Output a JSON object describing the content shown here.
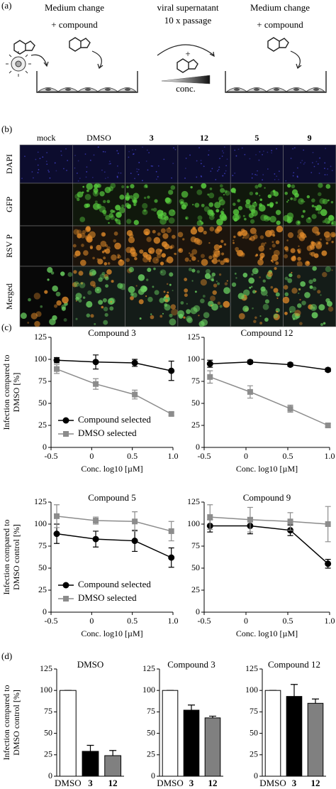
{
  "panel_a": {
    "label": "(a)",
    "left_step": [
      "Medium change",
      "+ compound"
    ],
    "middle_step": [
      "viral supernatant",
      "10 x passage",
      "+",
      "conc."
    ],
    "right_step": [
      "Medium change",
      "+ compound"
    ]
  },
  "panel_b": {
    "label": "(b)",
    "columns": [
      "mock",
      "DMSO",
      "3",
      "12",
      "5",
      "9"
    ],
    "rows": [
      "DAPI",
      "GFP",
      "RSV P",
      "Merged"
    ]
  },
  "panel_c_label": "(c)",
  "panel_d_label": "(d)",
  "chart_data": [
    {
      "type": "line",
      "title": "Compound 3",
      "xlabel": "Conc. log10 [µM]",
      "ylabel": [
        "Infection compared to",
        "DMSO [%]"
      ],
      "xlim": [
        -0.5,
        1
      ],
      "xticks": [
        -0.5,
        0,
        0.5,
        {
          "value": 1,
          "label": "1.0"
        }
      ],
      "ylim": [
        0,
        125
      ],
      "yticks": [
        0,
        25,
        50,
        75,
        100,
        125
      ],
      "legend": "lower-left",
      "x": [
        -0.43,
        0.05,
        0.53,
        0.98
      ],
      "series": [
        {
          "name": "Compound selected",
          "color": "#000000",
          "marker": "circle",
          "values": [
            99,
            97,
            96,
            87
          ],
          "errors": [
            3,
            8,
            4,
            11
          ]
        },
        {
          "name": "DMSO selected",
          "color": "#8c8c8c",
          "marker": "square",
          "values": [
            89,
            72,
            60,
            38
          ],
          "errors": [
            5,
            6,
            5,
            2
          ]
        }
      ]
    },
    {
      "type": "line",
      "title": "Compound 12",
      "xlabel": "Conc. log10 [µM]",
      "xlim": [
        -0.5,
        1
      ],
      "xticks": [
        -0.5,
        0,
        0.5,
        {
          "value": 1,
          "label": "1.0"
        }
      ],
      "ylim": [
        0,
        125
      ],
      "yticks": [
        0,
        25,
        50,
        75,
        100,
        125
      ],
      "x": [
        -0.43,
        0.05,
        0.53,
        0.98
      ],
      "series": [
        {
          "name": "Compound selected",
          "color": "#000000",
          "marker": "circle",
          "values": [
            95,
            97,
            94,
            88
          ],
          "errors": [
            4,
            2,
            2,
            2
          ]
        },
        {
          "name": "DMSO selected",
          "color": "#8c8c8c",
          "marker": "square",
          "values": [
            80,
            63,
            44,
            25
          ],
          "errors": [
            7,
            7,
            4,
            2
          ]
        }
      ]
    },
    {
      "type": "line",
      "title": "Compound 5",
      "xlabel": "Conc. log10 [µM]",
      "ylabel": [
        "Infection compared to",
        "DMSO control  [%]"
      ],
      "xlim": [
        -0.5,
        1
      ],
      "xticks": [
        -0.5,
        0,
        0.5,
        {
          "value": 1,
          "label": "1.0"
        }
      ],
      "ylim": [
        0,
        125
      ],
      "yticks": [
        0,
        25,
        50,
        75,
        100,
        125
      ],
      "legend": "lower-left",
      "x": [
        -0.43,
        0.05,
        0.53,
        0.98
      ],
      "series": [
        {
          "name": "Compound selected",
          "color": "#000000",
          "marker": "circle",
          "values": [
            89,
            83,
            81,
            62
          ],
          "errors": [
            11,
            9,
            12,
            11
          ]
        },
        {
          "name": "DMSO selected",
          "color": "#8c8c8c",
          "marker": "square",
          "values": [
            109,
            104,
            103,
            92
          ],
          "errors": [
            13,
            4,
            11,
            11
          ]
        }
      ]
    },
    {
      "type": "line",
      "title": "Compound 9",
      "xlabel": "Conc. log10 [µM]",
      "xlim": [
        -0.5,
        1
      ],
      "xticks": [
        -0.5,
        0,
        0.5,
        {
          "value": 1,
          "label": "1.0"
        }
      ],
      "ylim": [
        0,
        125
      ],
      "yticks": [
        0,
        25,
        50,
        75,
        100,
        125
      ],
      "x": [
        -0.43,
        0.05,
        0.53,
        0.98
      ],
      "series": [
        {
          "name": "Compound selected",
          "color": "#000000",
          "marker": "circle",
          "values": [
            98,
            98,
            93,
            55
          ],
          "errors": [
            7,
            9,
            6,
            5
          ]
        },
        {
          "name": "DMSO selected",
          "color": "#8c8c8c",
          "marker": "square",
          "values": [
            108,
            105,
            103,
            100
          ],
          "errors": [
            14,
            14,
            10,
            20
          ]
        }
      ]
    },
    {
      "type": "bar",
      "title": "DMSO",
      "ylabel": [
        "Infection compared to",
        "DMSO control [%]"
      ],
      "categories": [
        "DMSO",
        "3",
        "12"
      ],
      "colors": [
        "#ffffff",
        "#000000",
        "#808080"
      ],
      "values": [
        100,
        29,
        24
      ],
      "errors": [
        0,
        7,
        6
      ],
      "ylim": [
        0,
        125
      ],
      "yticks": [
        0,
        25,
        50,
        75,
        100,
        125
      ]
    },
    {
      "type": "bar",
      "title": "Compound 3",
      "categories": [
        "DMSO",
        "3",
        "12"
      ],
      "colors": [
        "#ffffff",
        "#000000",
        "#808080"
      ],
      "values": [
        100,
        77,
        68
      ],
      "errors": [
        0,
        6,
        2
      ],
      "ylim": [
        0,
        125
      ],
      "yticks": [
        0,
        25,
        50,
        75,
        100,
        125
      ]
    },
    {
      "type": "bar",
      "title": "Compound 12",
      "categories": [
        "DMSO",
        "3",
        "12"
      ],
      "colors": [
        "#ffffff",
        "#000000",
        "#808080"
      ],
      "values": [
        100,
        93,
        85
      ],
      "errors": [
        0,
        14,
        5
      ],
      "ylim": [
        0,
        125
      ],
      "yticks": [
        0,
        25,
        50,
        75,
        100,
        125
      ]
    }
  ]
}
